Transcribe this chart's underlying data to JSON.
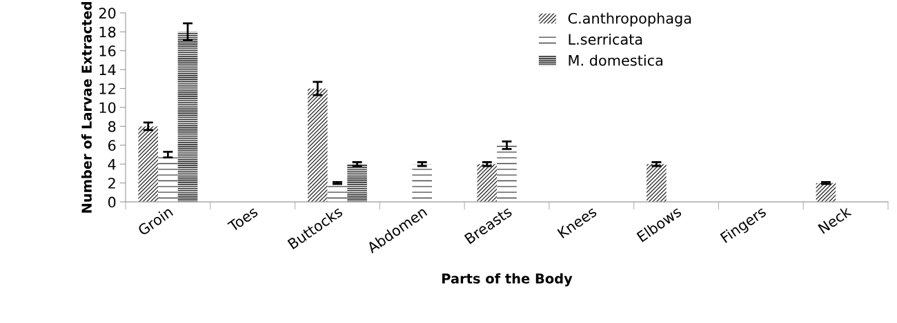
{
  "chart_data": {
    "type": "bar",
    "xlabel": "Parts of the Body",
    "ylabel": "Number of Larvae Extracted",
    "categories": [
      "Groin",
      "Toes",
      "Buttocks",
      "Abdomen",
      "Breasts",
      "Knees",
      "Elbows",
      "Fingers",
      "Neck"
    ],
    "series": [
      {
        "name": "C.anthropophaga",
        "color": "#333333",
        "values": [
          8,
          0,
          12,
          0,
          4,
          0,
          4,
          0,
          2
        ],
        "errors": [
          0.4,
          null,
          0.7,
          null,
          0.2,
          null,
          0.2,
          null,
          0.1
        ]
      },
      {
        "name": "L.serricata",
        "color": "#444444",
        "values": [
          5,
          0,
          2,
          4,
          6,
          0,
          0,
          0,
          0
        ],
        "errors": [
          0.3,
          null,
          0.1,
          0.2,
          0.4,
          null,
          null,
          null,
          null
        ]
      },
      {
        "name": "M. domestica",
        "color": "#111111",
        "values": [
          18,
          0,
          4,
          0,
          0,
          0,
          0,
          0,
          0
        ],
        "errors": [
          0.9,
          null,
          0.2,
          null,
          null,
          null,
          null,
          null,
          null
        ]
      }
    ],
    "ylim": [
      0,
      20
    ],
    "yticks": [
      0,
      2,
      4,
      6,
      8,
      10,
      12,
      14,
      16,
      18,
      20
    ],
    "grid": false,
    "legend": "top right"
  }
}
